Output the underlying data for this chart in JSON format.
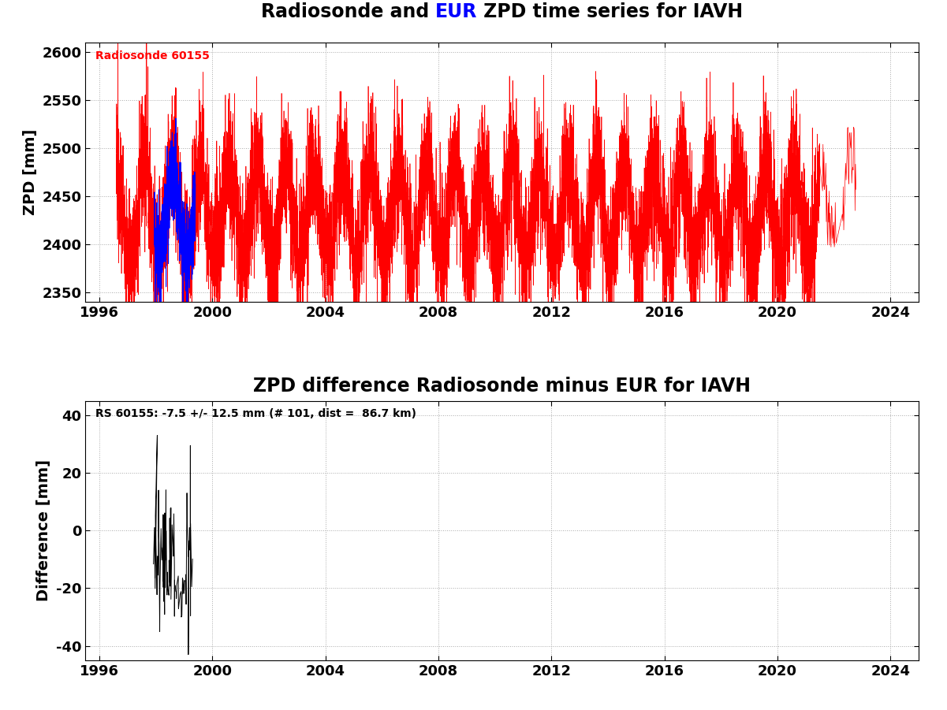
{
  "title2": "ZPD difference Radiosonde minus EUR for IAVH",
  "ylabel1": "ZPD [mm]",
  "ylabel2": "Difference [mm]",
  "xlim": [
    1995.5,
    2025.0
  ],
  "xticks": [
    1996,
    2000,
    2004,
    2008,
    2012,
    2016,
    2020,
    2024
  ],
  "ylim1": [
    2340,
    2610
  ],
  "yticks1": [
    2350,
    2400,
    2450,
    2500,
    2550,
    2600
  ],
  "ylim2": [
    -45,
    45
  ],
  "yticks2": [
    -40,
    -20,
    0,
    20,
    40
  ],
  "rs_label": "Radiosonde 60155",
  "rs_label_color": "red",
  "annotation": "RS 60155: -7.5 +/- 12.5 mm (# 101, dist =  86.7 km)",
  "annotation_color": "black",
  "rs_color": "red",
  "eur_color": "blue",
  "diff_color": "black",
  "background_color": "white",
  "grid_color": "#aaaaaa",
  "fontsize_title": 17,
  "fontsize_label": 14,
  "fontsize_tick": 13,
  "fontsize_annotation": 10,
  "fontsize_rs_label": 10
}
